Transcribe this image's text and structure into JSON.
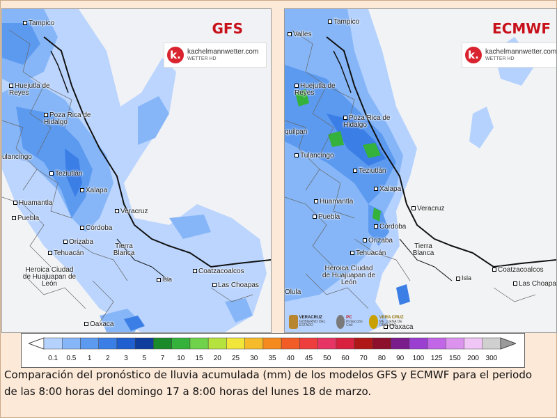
{
  "panels": {
    "gfs": {
      "model": "GFS",
      "cities": {
        "tampico": "Tampico",
        "huejutla": "Huejutla de Reyes",
        "pozarica": "Poza Rica de Hidalgo",
        "tulancingo": "ulancingo",
        "teziutlan": "Teziutlán",
        "xalapa": "Xalapa",
        "veracruz": "Veracruz",
        "huamantla": "Huamantla",
        "puebla": "Puebla",
        "cordoba": "Córdoba",
        "orizaba": "Orizaba",
        "tehuacan": "Tehuacán",
        "tierrablanca": "Tierra Blanca",
        "heroica": "Heroica Ciudad de Huajuapan de León",
        "isla": "Isla",
        "coatzacoalcos": "Coatzacoalcos",
        "laschoapas": "Las Choapas",
        "oaxaca": "Oaxaca"
      }
    },
    "ecmwf": {
      "model": "ECMWF",
      "cities": {
        "valles": "Valles",
        "tampico": "Tampico",
        "huejutla": "Huejutla de Reyes",
        "ixmiquilpan": "quilpan",
        "pozarica": "Poza Rica de Hidalgo",
        "tulancingo": "Tulancingo",
        "teziutlan": "Teziutlán",
        "xalapa": "Xalapa",
        "veracruz": "Veracruz",
        "huamantla": "Huamantla",
        "puebla": "Puebla",
        "cordoba": "Córdoba",
        "orizaba": "Orizaba",
        "tehuacan": "Tehuacán",
        "tierrablanca": "Tierra Blanca",
        "heroica": "Heroica Ciudad de Huajuapan de León",
        "isla": "Isla",
        "coatzacoalcos": "Coatzacoalcos",
        "laschoapas": "Las Choapas",
        "oaxaca": "Oaxaca",
        "cholula": "Olula"
      },
      "gov_logos": {
        "veracruz_title": "VERACRUZ",
        "veracruz_sub": "GOBIERNO DEL ESTADO",
        "pc_title": "PC",
        "pc_sub": "Protección Civil",
        "veracruz2_title": "VERA CRUZ",
        "veracruz2_sub": "ME LLENA DE ORGULLO"
      }
    }
  },
  "watermark": {
    "site": "kachelmannwetter.com",
    "sub": "WETTER HD",
    "logo": "k."
  },
  "legend": {
    "labels": [
      "0.1",
      "0.5",
      "1",
      "2",
      "3",
      "5",
      "7",
      "10",
      "15",
      "20",
      "25",
      "30",
      "35",
      "40",
      "45",
      "50",
      "60",
      "70",
      "80",
      "90",
      "100",
      "125",
      "150",
      "200",
      "300"
    ],
    "colors": [
      "#b5d2ff",
      "#86b6f7",
      "#5c9af0",
      "#3b7ee6",
      "#1f5fcf",
      "#0f3d9e",
      "#1b8a2a",
      "#34b23b",
      "#6fd24a",
      "#b6e23e",
      "#f2e63a",
      "#f6bb2a",
      "#f58b1e",
      "#f25c26",
      "#ee3d3d",
      "#e63565",
      "#d8213f",
      "#b01818",
      "#8c0f2b",
      "#7a1c8c",
      "#9b3fd0",
      "#c066e6",
      "#dc93ee",
      "#f0c6f6",
      "#d0d0d0"
    ],
    "left_arrow_color": "#ffffff",
    "right_arrow_color": "#9a9a9a"
  },
  "caption": "Comparación del pronóstico de lluvia acumulada (mm) de los modelos GFS y ECMWF para el periodo de las 8:00 horas del domingo 17 a 8:00 horas del lunes 18 de marzo.",
  "colors": {
    "title_red": "#c8101a",
    "rain_light": "#b5d2ff",
    "rain_mid": "#5c9af0",
    "rain_dark": "#1f5fcf",
    "rain_green": "#34b23b"
  }
}
